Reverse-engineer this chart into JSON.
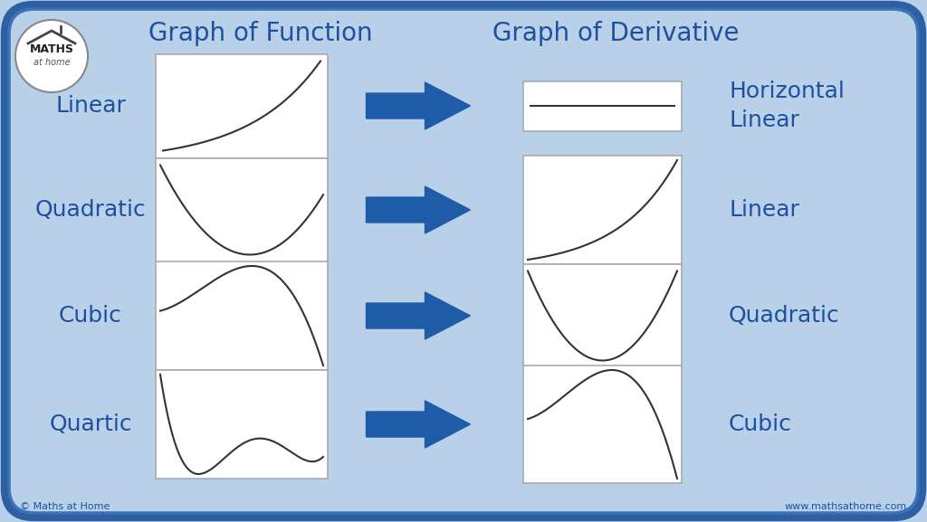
{
  "bg_outer": "#a8c4e0",
  "bg_inner": "#b8d0e8",
  "border_color_outer": "#2e5fa3",
  "border_color_inner": "#3a72b8",
  "box_bg": "#ffffff",
  "box_edge": "#888888",
  "title_color": "#1e4fa0",
  "label_color": "#1e4fa0",
  "arrow_color": "#1e5ca8",
  "curve_color": "#333333",
  "title_left": "Graph of Function",
  "title_right": "Graph of Derivative",
  "rows": [
    "Linear",
    "Quadratic",
    "Cubic",
    "Quartic"
  ],
  "deriv_labels": [
    "Horizontal\nLinear",
    "Linear",
    "Quadratic",
    "Cubic"
  ],
  "header_fontsize": 20,
  "label_fontsize": 18,
  "deriv_label_fontsize": 18,
  "copy_fontsize": 8,
  "logo_fontsize_main": 9,
  "logo_fontsize_sub": 7
}
